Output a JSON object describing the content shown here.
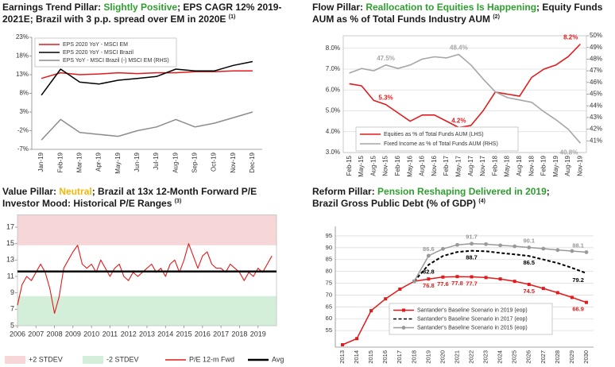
{
  "chart_data": [
    {
      "type": "line",
      "title_parts": [
        {
          "text": "Earnings Trend Pillar: "
        },
        {
          "text": "Slightly Positive",
          "color": "#2e9f2e"
        },
        {
          "text": "; EPS CAGR 12% 2019-2021E; Brazil with 3 p.p. spread over EM in 2020E "
        }
      ],
      "title_note": "(1)",
      "categories": [
        "Jan-19",
        "Feb-19",
        "Mar-19",
        "Apr-19",
        "May-19",
        "Jun-19",
        "Jul-19",
        "Aug-19",
        "Sep-19",
        "Oct-19",
        "Nov-19",
        "Dec-19"
      ],
      "ylim": [
        -7,
        23
      ],
      "yticks": [
        {
          "value": -7,
          "label": "-7%"
        },
        {
          "value": -2,
          "label": "-2%"
        },
        {
          "value": 3,
          "label": "3%"
        },
        {
          "value": 8,
          "label": "8%"
        },
        {
          "value": 13,
          "label": "13%"
        },
        {
          "value": 18,
          "label": "18%"
        },
        {
          "value": 23,
          "label": "23%"
        }
      ],
      "grid": false,
      "legend": "top-left",
      "series": [
        {
          "name": "EPS 2020 YoY - MSCI EM",
          "color": "#e31a1c",
          "values": [
            12,
            13.5,
            13,
            13.2,
            13.5,
            13.3,
            13.5,
            13.5,
            13.8,
            13.8,
            14,
            14
          ]
        },
        {
          "name": "EPS 2020 YoY - MSCI Brazil",
          "color": "#000000",
          "values": [
            7.5,
            14.5,
            11,
            10.5,
            11.5,
            12,
            12.5,
            14.5,
            14,
            14,
            15.5,
            16.5
          ]
        },
        {
          "name": "EPS YoY - MSCI Brazil (-) MSCI EM (RHS)",
          "color": "#8c8c8c",
          "values": [
            -4.5,
            1,
            -2.5,
            -3,
            -3.5,
            -2,
            -1,
            1,
            -1,
            0,
            1.5,
            3
          ]
        }
      ]
    },
    {
      "type": "line",
      "title_parts": [
        {
          "text": "Flow Pillar: "
        },
        {
          "text": "Reallocation to Equities Is Happening",
          "color": "#2e9f2e"
        },
        {
          "text": "; Equity Funds AUM as % of Total Funds Industry AUM "
        }
      ],
      "title_note": "(2)",
      "categories": [
        "Feb-15",
        "May-15",
        "Aug-15",
        "Nov-15",
        "Feb-16",
        "May-16",
        "Aug-16",
        "Nov-16",
        "Feb-17",
        "May-17",
        "Aug-17",
        "Nov-17",
        "Feb-18",
        "May-18",
        "Aug-18",
        "Nov-18",
        "Feb-19",
        "May-19",
        "Aug-19",
        "Nov-19"
      ],
      "ylim": [
        3,
        8.6
      ],
      "yticks": [
        {
          "value": 3,
          "label": "3.0%"
        },
        {
          "value": 4,
          "label": "4.0%"
        },
        {
          "value": 5,
          "label": "5.0%"
        },
        {
          "value": 6,
          "label": "6.0%"
        },
        {
          "value": 7,
          "label": "7.0%"
        },
        {
          "value": 8,
          "label": "8.0%"
        }
      ],
      "y2lim": [
        40,
        50
      ],
      "y2ticks": [
        {
          "value": 41,
          "label": "41%"
        },
        {
          "value": 42,
          "label": "42%"
        },
        {
          "value": 43,
          "label": "43%"
        },
        {
          "value": 44,
          "label": "44%"
        },
        {
          "value": 45,
          "label": "45%"
        },
        {
          "value": 46,
          "label": "46%"
        },
        {
          "value": 47,
          "label": "47%"
        },
        {
          "value": 48,
          "label": "48%"
        },
        {
          "value": 49,
          "label": "49%"
        },
        {
          "value": 50,
          "label": "50%"
        }
      ],
      "grid": true,
      "legend": "bottom-left",
      "series": [
        {
          "name": "Equities as % of Total Funds AUM (LHS)",
          "color": "#e31a1c",
          "values": [
            6.3,
            6.2,
            5.5,
            5.3,
            4.9,
            4.5,
            4.8,
            4.8,
            4.5,
            4.2,
            4.3,
            5.0,
            5.9,
            5.8,
            5.7,
            6.6,
            7.0,
            7.2,
            7.6,
            8.2
          ],
          "value_labels": [
            null,
            null,
            null,
            "5.3%",
            null,
            null,
            null,
            null,
            null,
            "4.2%",
            null,
            null,
            null,
            null,
            null,
            null,
            null,
            null,
            null,
            "8.2%"
          ]
        },
        {
          "name": "Fixed Income as % of Total Funds AUM (RHS)",
          "color": "#a6a6a6",
          "axis": "y2",
          "values": [
            46.8,
            47.2,
            47.0,
            47.5,
            47.2,
            47.5,
            48.0,
            48.2,
            48.1,
            48.4,
            47.5,
            46.3,
            45.2,
            44.7,
            44.5,
            44.3,
            43.5,
            42.8,
            42.0,
            40.8
          ],
          "value_labels": [
            null,
            null,
            null,
            "47.5%",
            null,
            null,
            null,
            null,
            null,
            "48.4%",
            null,
            null,
            null,
            null,
            null,
            null,
            null,
            null,
            null,
            "40.8%"
          ]
        }
      ]
    },
    {
      "type": "line",
      "title_parts": [
        {
          "text": "Value Pillar: "
        },
        {
          "text": "Neutral",
          "color": "#f2b705"
        },
        {
          "text": "; Brazil at 13x 12-Month Forward P/E"
        }
      ],
      "subtitle": "Investor Mood: Historical P/E Ranges ",
      "title_note": "(3)",
      "x": [
        2006,
        2006.25,
        2006.5,
        2006.75,
        2007,
        2007.25,
        2007.5,
        2007.75,
        2008,
        2008.25,
        2008.5,
        2008.75,
        2009,
        2009.25,
        2009.5,
        2009.75,
        2010,
        2010.25,
        2010.5,
        2010.75,
        2011,
        2011.25,
        2011.5,
        2011.75,
        2012,
        2012.25,
        2012.5,
        2012.75,
        2013,
        2013.25,
        2013.5,
        2013.75,
        2014,
        2014.25,
        2014.5,
        2014.75,
        2015,
        2015.25,
        2015.5,
        2015.75,
        2016,
        2016.25,
        2016.5,
        2016.75,
        2017,
        2017.25,
        2017.5,
        2017.75,
        2018,
        2018.25,
        2018.5,
        2018.75,
        2019,
        2019.25,
        2019.5,
        2019.75
      ],
      "xlim": [
        2006,
        2020
      ],
      "xticks": [
        2006,
        2007,
        2008,
        2009,
        2010,
        2011,
        2012,
        2013,
        2014,
        2015,
        2016,
        2017,
        2018,
        2019
      ],
      "ylim": [
        5,
        18.5
      ],
      "yticks": [
        5,
        7,
        9,
        11,
        13,
        15,
        17
      ],
      "grid": false,
      "legend": "bottom",
      "bands": [
        {
          "name": "+2 STDEV",
          "color": "#f6d6d6",
          "level": 14.8,
          "side": "above"
        },
        {
          "name": "-2 STDEV",
          "color": "#d4efd9",
          "level": 8.6,
          "side": "below"
        }
      ],
      "series": [
        {
          "name": "P/E 12-m Fwd",
          "color": "#e31a1c",
          "values": [
            7.5,
            10,
            11,
            10.5,
            11.5,
            12.5,
            11.5,
            9.5,
            6.5,
            8.5,
            12,
            13,
            14,
            14.8,
            12.5,
            12,
            12.5,
            11.5,
            13,
            12,
            11,
            12,
            12.5,
            11,
            10.5,
            11.5,
            11,
            11.5,
            12,
            12.5,
            11.5,
            12,
            11,
            12.5,
            13,
            11.5,
            13,
            15,
            13.5,
            12,
            13.5,
            14,
            12.5,
            12,
            12,
            11.5,
            12.5,
            12,
            11.5,
            10.5,
            11.5,
            11,
            12,
            11.5,
            12.5,
            13.5
          ]
        }
      ],
      "reference_lines": [
        {
          "name": "Avg",
          "color": "#000000",
          "value": 11.6
        }
      ]
    },
    {
      "type": "line",
      "title_parts": [
        {
          "text": "Reform Pillar: "
        },
        {
          "text": "Pension Reshaping Delivered in 2019",
          "color": "#2e9f2e"
        },
        {
          "text": ";"
        }
      ],
      "subtitle": "Brazil Gross Public Debt (% of GDP) ",
      "title_note": "(4)",
      "categories": [
        "2013",
        "2014",
        "2015",
        "2016",
        "2017",
        "2018",
        "2019",
        "2020",
        "2021",
        "2022",
        "2023",
        "2024",
        "2025",
        "2026",
        "2027",
        "2028",
        "2029",
        "2030"
      ],
      "ylim": [
        48,
        99
      ],
      "yticks": [
        55,
        60,
        65,
        70,
        75,
        80,
        85,
        90,
        95
      ],
      "grid": true,
      "legend": "bottom-left",
      "series": [
        {
          "name": "Santander's Baseline Scenario in 2019 (eop)",
          "color": "#e31a1c",
          "marker": "square",
          "values": [
            49,
            51.6,
            63.4,
            68.4,
            72.5,
            75.8,
            76.8,
            77.6,
            77.8,
            77.7,
            77.4,
            76.8,
            75.8,
            74.5,
            72.8,
            71,
            69,
            66.9
          ],
          "value_labels": [
            null,
            null,
            null,
            null,
            null,
            null,
            "76.8",
            "77.6",
            "77.8",
            "77.7",
            null,
            null,
            null,
            "74.5",
            null,
            null,
            null,
            "66.9"
          ]
        },
        {
          "name": "Santander's Baseline Scenario in 2017 (eop)",
          "color": "#000000",
          "dash": true,
          "values": [
            null,
            null,
            null,
            null,
            null,
            75.8,
            82.8,
            86.5,
            88.2,
            88.7,
            88.5,
            87.8,
            87.2,
            86.5,
            85,
            83.5,
            81.5,
            79.2
          ],
          "value_labels": [
            null,
            null,
            null,
            null,
            null,
            null,
            "82.8",
            null,
            null,
            "88.7",
            null,
            null,
            null,
            "86.5",
            null,
            null,
            null,
            "79.2"
          ]
        },
        {
          "name": "Santander's Baseline Scenario in 2015 (eop)",
          "color": "#999999",
          "marker": "circle",
          "values": [
            null,
            null,
            null,
            null,
            null,
            75.8,
            86.6,
            89.5,
            91.2,
            91.7,
            91.5,
            91.0,
            90.6,
            90.1,
            89.6,
            89.0,
            88.6,
            88.1
          ],
          "value_labels": [
            null,
            null,
            null,
            null,
            null,
            null,
            "86.6",
            null,
            null,
            "91.7",
            null,
            null,
            null,
            "90.1",
            null,
            null,
            null,
            "88.1"
          ]
        }
      ]
    }
  ]
}
